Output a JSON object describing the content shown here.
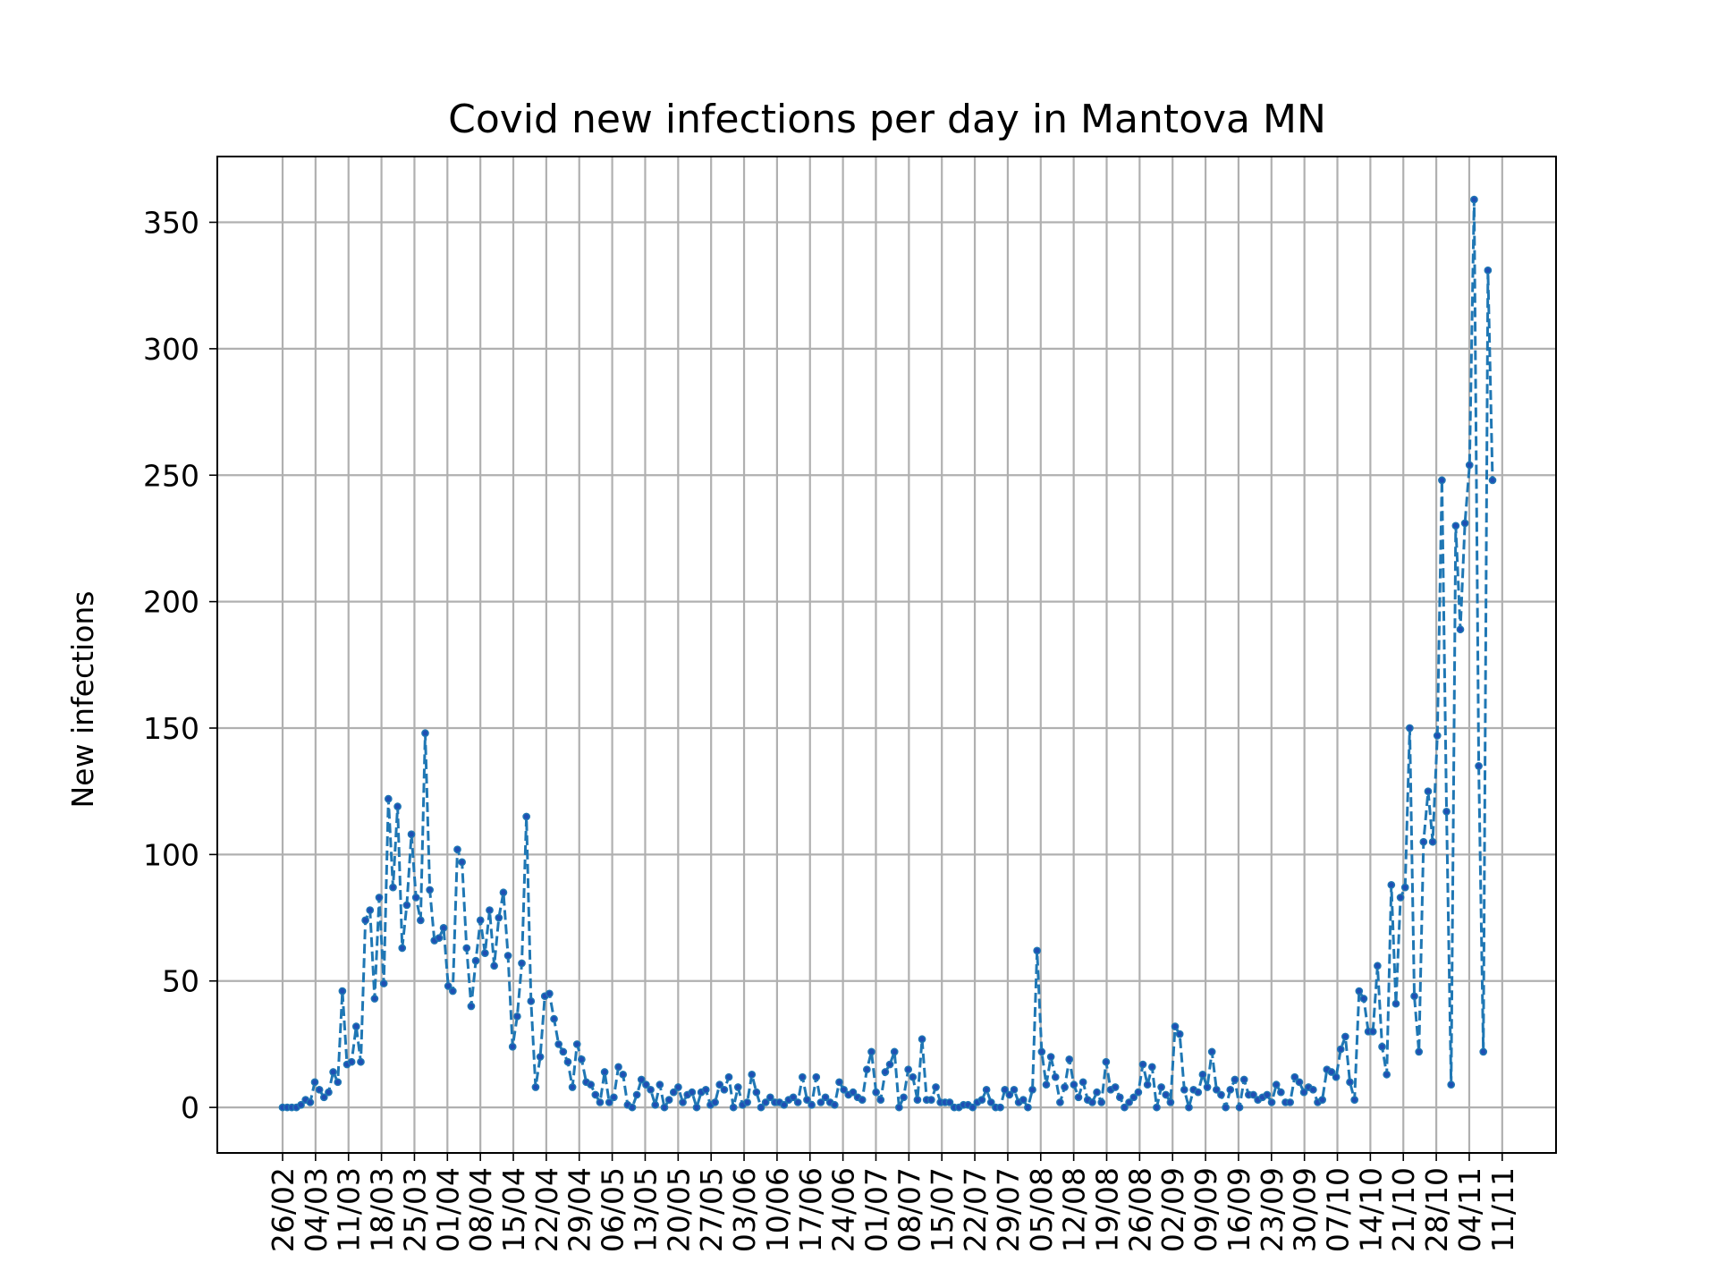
{
  "chart_data": {
    "type": "line",
    "title": "Covid new infections per day in Mantova MN",
    "xlabel": "",
    "ylabel": "New infections",
    "ylim": [
      -18,
      376
    ],
    "yticks": [
      0,
      50,
      100,
      150,
      200,
      250,
      300,
      350
    ],
    "xtick_labels": [
      "26/02",
      "04/03",
      "11/03",
      "18/03",
      "25/03",
      "01/04",
      "08/04",
      "15/04",
      "22/04",
      "29/04",
      "06/05",
      "13/05",
      "20/05",
      "27/05",
      "03/06",
      "10/06",
      "17/06",
      "24/06",
      "01/07",
      "08/07",
      "15/07",
      "22/07",
      "29/07",
      "05/08",
      "12/08",
      "19/08",
      "26/08",
      "02/09",
      "09/09",
      "16/09",
      "23/09",
      "30/09",
      "07/10",
      "14/10",
      "21/10",
      "28/10",
      "04/11",
      "11/11"
    ],
    "grid": true,
    "colors": {
      "line": "#1f77b4",
      "marker": "#1f4fb4",
      "grid": "#b0b0b0"
    },
    "series": [
      {
        "x_start": "26/02",
        "values": [
          0,
          0,
          0,
          0,
          1,
          3,
          2,
          10,
          7,
          4,
          6,
          14,
          10,
          46,
          17,
          18,
          32,
          18,
          74,
          78,
          43,
          83,
          49,
          122,
          87,
          119,
          63,
          80,
          108,
          83,
          74,
          148,
          86,
          66,
          67,
          71,
          48,
          46,
          102,
          97,
          63,
          40,
          58,
          74,
          61,
          78,
          56,
          75,
          85,
          60,
          24,
          36,
          57,
          115,
          42,
          8,
          20,
          44,
          45,
          35,
          25,
          22,
          18,
          8,
          25,
          19,
          10,
          9,
          5,
          2,
          14,
          2,
          4,
          16,
          13,
          1,
          0,
          5,
          11,
          9,
          7,
          1,
          9,
          0,
          3,
          6,
          8,
          2,
          5,
          6,
          0,
          6,
          7,
          1,
          2,
          9,
          7,
          12,
          0,
          8,
          1,
          2,
          13,
          6,
          0,
          2,
          4,
          2,
          2,
          1,
          3,
          4,
          2,
          12,
          3,
          1,
          12,
          2,
          4,
          2,
          1,
          10,
          7,
          5,
          6,
          4,
          3,
          15,
          22,
          6,
          3,
          14,
          17,
          22,
          0,
          4,
          15,
          12,
          3,
          27,
          3,
          3,
          8,
          2,
          2,
          2,
          0,
          0,
          1,
          1,
          0,
          2,
          3,
          7,
          2,
          0,
          0,
          7,
          5,
          7,
          2,
          3,
          0,
          7,
          62,
          22,
          9,
          20,
          12,
          2,
          8,
          19,
          9,
          4,
          10,
          3,
          2,
          6,
          2,
          18,
          7,
          8,
          4,
          0,
          2,
          4,
          6,
          17,
          9,
          16,
          0,
          8,
          5,
          2,
          32,
          29,
          7,
          0,
          7,
          6,
          13,
          8,
          22,
          7,
          5,
          0,
          7,
          11,
          0,
          11,
          5,
          5,
          3,
          4,
          5,
          2,
          9,
          6,
          2,
          2,
          12,
          10,
          6,
          8,
          7,
          2,
          3,
          15,
          14,
          12,
          23,
          28,
          10,
          3,
          46,
          43,
          30,
          30,
          56,
          24,
          13,
          88,
          41,
          83,
          87,
          150,
          44,
          22,
          105,
          125,
          105,
          147,
          248,
          117,
          9,
          230,
          189,
          231,
          254,
          359,
          135,
          22,
          331,
          248
        ]
      }
    ]
  }
}
